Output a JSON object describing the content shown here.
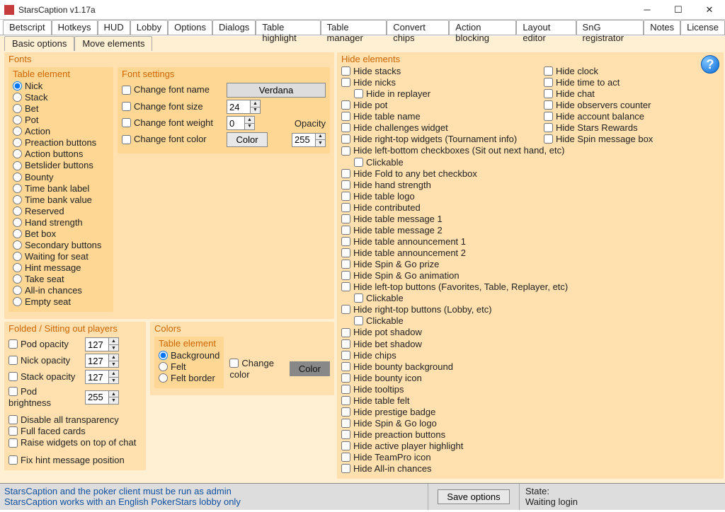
{
  "window_title": "StarsCaption v1.17a",
  "main_tabs": [
    "Betscript",
    "Hotkeys",
    "HUD",
    "Lobby",
    "Options",
    "Dialogs",
    "Table highlight",
    "Table manager",
    "Convert chips",
    "Action blocking",
    "Layout editor",
    "SnG registrator",
    "Notes",
    "License"
  ],
  "main_tabs_active": "Layout editor",
  "sub_tabs": [
    "Basic options",
    "Move elements"
  ],
  "sub_tabs_active": "Basic options",
  "fonts_group": "Fonts",
  "table_element_group": "Table element",
  "table_elements": [
    "Nick",
    "Stack",
    "Bet",
    "Pot",
    "Action",
    "Preaction buttons",
    "Action buttons",
    "Betslider buttons",
    "Bounty",
    "Time bank label",
    "Time bank value",
    "Reserved",
    "Hand strength",
    "Bet box",
    "Secondary buttons",
    "Waiting for seat",
    "Hint message",
    "Take seat",
    "All-in chances",
    "Empty seat"
  ],
  "table_element_selected": "Nick",
  "font_settings_group": "Font settings",
  "change_font_name": "Change font name",
  "font_name_value": "Verdana",
  "change_font_size": "Change font size",
  "font_size_value": "24",
  "change_font_weight": "Change font weight",
  "font_weight_value": "0",
  "change_font_color": "Change font color",
  "color_btn": "Color",
  "opacity_label": "Opacity",
  "opacity_value": "255",
  "folded_group": "Folded / Sitting out players",
  "pod_opacity": "Pod opacity",
  "nick_opacity": "Nick opacity",
  "stack_opacity": "Stack opacity",
  "pod_brightness": "Pod brightness",
  "pod_opacity_val": "127",
  "nick_opacity_val": "127",
  "stack_opacity_val": "127",
  "pod_brightness_val": "255",
  "colors_group": "Colors",
  "colors_table_element_group": "Table element",
  "color_elements": [
    "Background",
    "Felt",
    "Felt border"
  ],
  "color_element_selected": "Background",
  "change_color": "Change color",
  "color_btn2": "Color",
  "disable_transparency": "Disable all transparency",
  "full_faced": "Full faced cards",
  "raise_widgets": "Raise widgets on top of chat",
  "fix_hint": "Fix hint message position",
  "hide_group": "Hide elements",
  "hide_col1": [
    "Hide stacks",
    "Hide nicks",
    {
      "indent": true,
      "label": "Hide in replayer"
    },
    "Hide pot",
    "Hide table name",
    "Hide challenges widget",
    "Hide right-top widgets (Tournament info)",
    "Hide left-bottom checkboxes (Sit out next hand, etc)",
    {
      "indent": true,
      "label": "Clickable"
    },
    "Hide Fold to any bet checkbox",
    "Hide hand strength",
    "Hide table logo",
    "Hide contributed",
    "Hide table message 1",
    "Hide table message 2",
    "Hide table announcement 1",
    "Hide table announcement 2",
    "Hide Spin & Go prize",
    "Hide Spin & Go animation",
    "Hide left-top buttons (Favorites, Table, Replayer, etc)",
    {
      "indent": true,
      "label": "Clickable"
    },
    "Hide right-top buttons (Lobby, etc)",
    {
      "indent": true,
      "label": "Clickable"
    },
    "Hide pot shadow",
    "Hide bet shadow",
    "Hide chips",
    "Hide bounty background",
    "Hide bounty icon",
    "Hide tooltips",
    "Hide table felt",
    "Hide prestige badge",
    "Hide Spin & Go logo",
    "Hide preaction buttons",
    "Hide active player highlight",
    "Hide TeamPro icon",
    "Hide All-in chances"
  ],
  "hide_col2": [
    "Hide clock",
    "Hide time to act",
    "Hide chat",
    "Hide observers counter",
    "Hide account balance",
    "Hide Stars Rewards",
    "Hide Spin message box"
  ],
  "status_msg_1": "StarsCaption and the poker client must be run as admin",
  "status_msg_2": "StarsCaption works with an English PokerStars lobby only",
  "save_btn": "Save options",
  "state_label": "State:",
  "state_value": "Waiting login"
}
